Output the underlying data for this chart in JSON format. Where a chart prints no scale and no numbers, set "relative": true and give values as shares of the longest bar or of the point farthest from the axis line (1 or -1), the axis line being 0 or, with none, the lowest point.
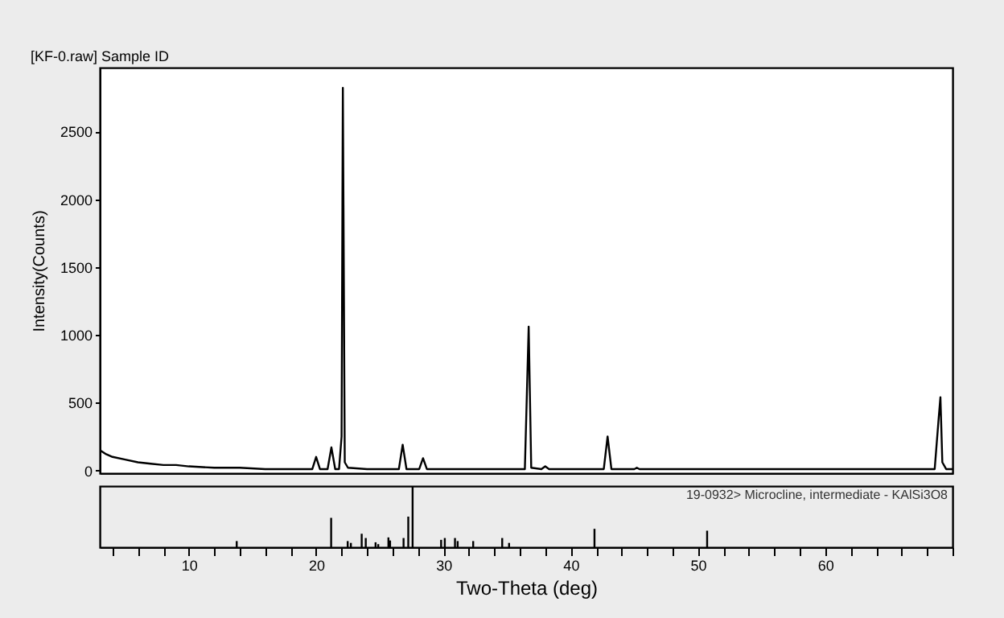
{
  "chart_data": [
    {
      "type": "line",
      "title": "[KF-0.raw] Sample ID",
      "ylabel": "Intensity(Counts)",
      "x": [
        3,
        3.5,
        4,
        5,
        6,
        7,
        8,
        9,
        10,
        12,
        14,
        16,
        18,
        19.7,
        20.0,
        20.3,
        20.9,
        21.2,
        21.5,
        21.8,
        22.0,
        22.1,
        22.25,
        22.5,
        24,
        26.5,
        26.8,
        27.1,
        28.1,
        28.4,
        28.7,
        30,
        33,
        36.4,
        36.7,
        36.9,
        37.7,
        38.0,
        38.3,
        42.6,
        42.9,
        43.2,
        45.0,
        45.2,
        45.4,
        50,
        60,
        66,
        68.6,
        68.9,
        69.05,
        69.2,
        69.5,
        70
      ],
      "series": [
        {
          "color": "#000000",
          "values": [
            150,
            120,
            100,
            80,
            60,
            50,
            40,
            40,
            30,
            20,
            20,
            10,
            10,
            10,
            100,
            10,
            10,
            170,
            10,
            10,
            250,
            2820,
            60,
            20,
            10,
            10,
            190,
            10,
            10,
            90,
            10,
            10,
            10,
            10,
            1060,
            20,
            10,
            30,
            10,
            10,
            250,
            10,
            10,
            20,
            10,
            10,
            10,
            10,
            10,
            370,
            540,
            60,
            10,
            10
          ]
        }
      ],
      "xlim": [
        3,
        70
      ],
      "ylim": [
        -20,
        2970
      ],
      "yticks": [
        0,
        500,
        1000,
        1500,
        2000,
        2500
      ],
      "tick_labels": "y",
      "grid": false
    },
    {
      "type": "bar",
      "xlabel": "Two-Theta (deg)",
      "relative": true,
      "annotations": [
        "19-0932> Microcline, intermediate - KAlSi3O8"
      ],
      "x": [
        13.76,
        21.18,
        22.48,
        22.73,
        23.58,
        23.9,
        24.67,
        24.88,
        25.68,
        25.81,
        26.87,
        27.24,
        27.58,
        29.82,
        30.11,
        30.91,
        31.12,
        32.34,
        34.62,
        35.16,
        41.87,
        50.72
      ],
      "series": [
        {
          "color": "#000000",
          "values": [
            0.1,
            0.48,
            0.1,
            0.07,
            0.22,
            0.15,
            0.08,
            0.05,
            0.16,
            0.11,
            0.15,
            0.5,
            1,
            0.12,
            0.15,
            0.15,
            0.1,
            0.1,
            0.15,
            0.07,
            0.3,
            0.27
          ]
        }
      ],
      "xlim": [
        3,
        70
      ],
      "xticks": [
        10,
        20,
        30,
        40,
        50,
        60
      ],
      "tick_labels": "x",
      "grid": false
    }
  ]
}
